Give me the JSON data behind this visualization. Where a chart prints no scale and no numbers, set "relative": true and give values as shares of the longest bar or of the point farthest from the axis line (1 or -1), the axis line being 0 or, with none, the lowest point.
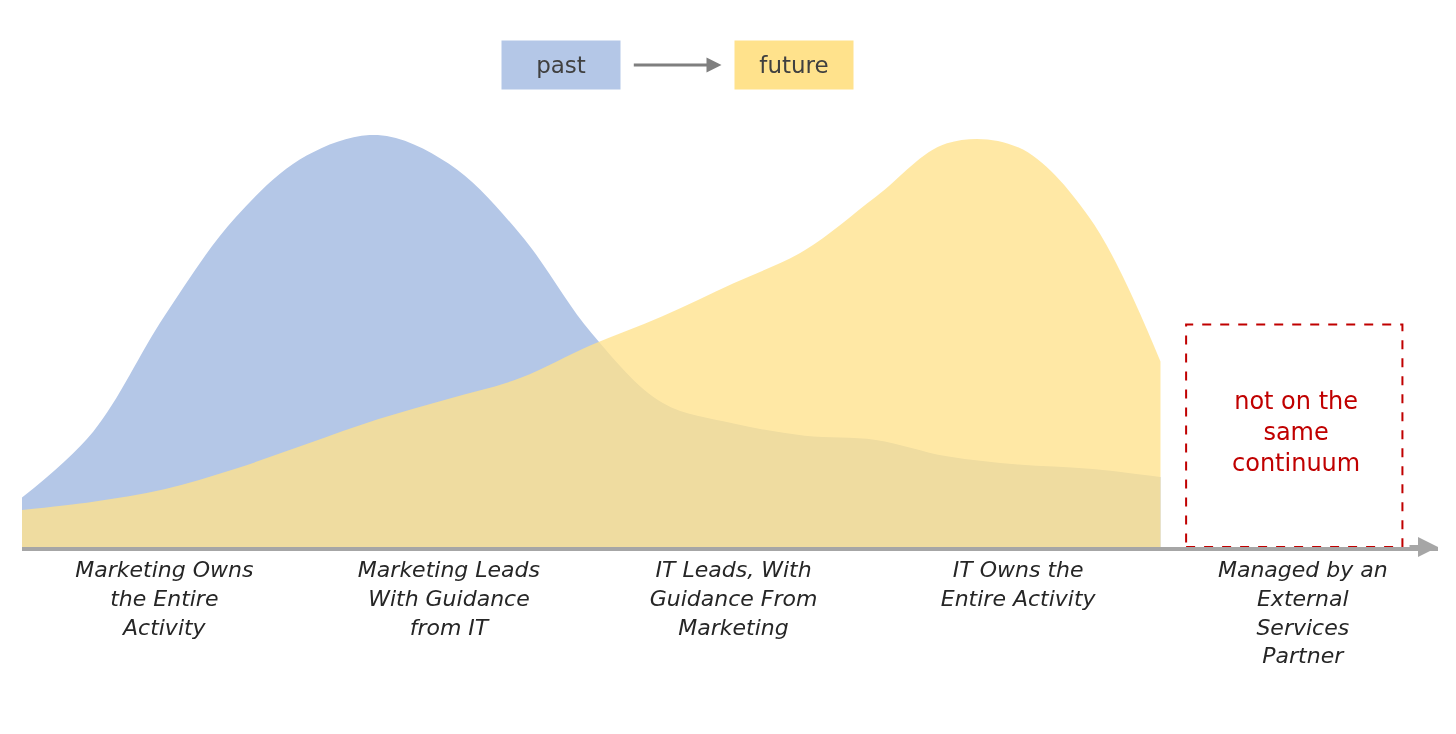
{
  "chart_data": {
    "type": "area",
    "relative": true,
    "legend": "top",
    "categories": [
      null,
      null,
      "Marketing Owns the Entire Activity",
      null,
      null,
      null,
      "Marketing Leads With Guidance from IT",
      null,
      null,
      null,
      "IT Leads, With Guidance From Marketing",
      null,
      null,
      null,
      "IT Owns the Entire Activity",
      null,
      null,
      null,
      "Managed by an External Services Partner"
    ],
    "series": [
      {
        "name": "past",
        "color": "#b4c7e7",
        "values": [
          0.12,
          0.28,
          0.56,
          0.8,
          0.95,
          1.0,
          0.93,
          0.76,
          0.52,
          0.35,
          0.3,
          0.27,
          0.26,
          0.22,
          0.2,
          0.19,
          0.17,
          null,
          null
        ]
      },
      {
        "name": "future",
        "color": "#ffe28c",
        "values": [
          0.09,
          0.11,
          0.14,
          0.19,
          0.25,
          0.31,
          0.36,
          0.41,
          0.49,
          0.56,
          0.64,
          0.72,
          0.85,
          0.98,
          0.97,
          0.8,
          0.45,
          null,
          null
        ]
      }
    ],
    "annotations": [
      "not on the same continuum"
    ]
  }
}
